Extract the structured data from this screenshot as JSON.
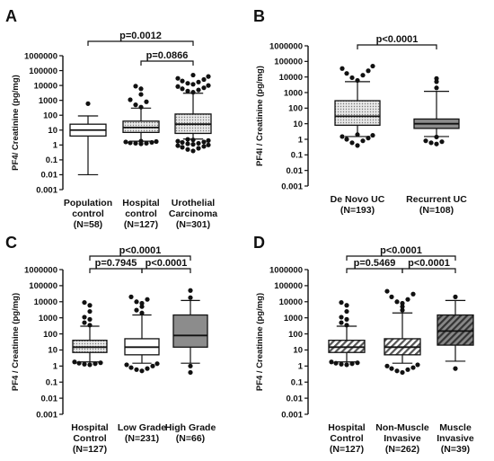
{
  "chart_data": [
    {
      "type": "box",
      "panel_label": "A",
      "ylabel": "PF4/ Creatinine (pg/mg)",
      "y_scale": "log",
      "ylim": [
        0.001,
        1000000
      ],
      "y_ticks": [
        "0.001",
        "0.01",
        "0.1",
        "1",
        "10",
        "100",
        "1000",
        "10000",
        "100000",
        "1000000"
      ],
      "categories": [
        {
          "lines": [
            "Population",
            "control",
            "(N=58)"
          ]
        },
        {
          "lines": [
            "Hospital",
            "control",
            "(N=127)"
          ]
        },
        {
          "lines": [
            "Urothelial",
            "Carcinoma",
            "(N=301)"
          ]
        }
      ],
      "boxes": [
        {
          "min": 0.01,
          "q1": 4,
          "median": 10,
          "q3": 25,
          "max": 90,
          "fill": "white",
          "outliers": [
            600
          ]
        },
        {
          "min": 1.8,
          "q1": 7,
          "median": 15,
          "q3": 40,
          "max": 300,
          "fill": "dots",
          "outliers": [
            1.2,
            1.3,
            1.3,
            1.4,
            1.5,
            1.6,
            1.7,
            1.8,
            350,
            500,
            800,
            1100,
            2500,
            6000,
            9000
          ]
        },
        {
          "min": 2.5,
          "q1": 6,
          "median": 25,
          "q3": 120,
          "max": 3000,
          "fill": "dots",
          "outliers": [
            0.4,
            0.5,
            0.6,
            0.7,
            0.8,
            0.9,
            1,
            1.1,
            1.2,
            1.3,
            1.5,
            1.6,
            1.8,
            2,
            2.2,
            2.4,
            3500,
            4200,
            5000,
            6000,
            7000,
            8500,
            10000,
            12000,
            14000,
            17000,
            20000,
            25000,
            30000,
            40000,
            50000
          ]
        }
      ],
      "comparisons": [
        {
          "from": 0,
          "to": 2,
          "label": "p=0.0012"
        },
        {
          "from": 1,
          "to": 2,
          "label": "p=0.0866"
        }
      ]
    },
    {
      "type": "box",
      "panel_label": "B",
      "ylabel": "PF4l / Creatinine (pg/mg)",
      "y_scale": "log",
      "ylim": [
        0.001,
        1000000
      ],
      "y_ticks": [
        "0.001",
        "0.01",
        "0.1",
        "1",
        "10",
        "100",
        "1000",
        "10000",
        "100000",
        "1000000"
      ],
      "categories": [
        {
          "lines": [
            "De Novo UC",
            "(N=193)"
          ]
        },
        {
          "lines": [
            "Recurrent UC",
            "(N=108)"
          ]
        }
      ],
      "boxes": [
        {
          "min": 1.5,
          "q1": 8,
          "median": 30,
          "q3": 300,
          "max": 5000,
          "fill": "dots",
          "outliers": [
            0.4,
            0.6,
            0.8,
            1,
            1.2,
            1.5,
            1.8,
            2,
            6000,
            9000,
            13000,
            17000,
            25000,
            35000,
            50000
          ]
        },
        {
          "min": 1.5,
          "q1": 5,
          "median": 10,
          "q3": 20,
          "max": 1200,
          "fill": "gray",
          "outliers": [
            0.5,
            0.6,
            0.7,
            0.8,
            1.4,
            2000,
            5000,
            8000
          ]
        }
      ],
      "comparisons": [
        {
          "from": 0,
          "to": 1,
          "label": "p<0.0001"
        }
      ]
    },
    {
      "type": "box",
      "panel_label": "C",
      "ylabel": "PF4 / Creatinine (pg/mg)",
      "y_scale": "log",
      "ylim": [
        0.001,
        1000000
      ],
      "y_ticks": [
        "0.001",
        "0.01",
        "0.1",
        "1",
        "10",
        "100",
        "1000",
        "10000",
        "100000",
        "1000000"
      ],
      "categories": [
        {
          "lines": [
            "Hospital",
            "Control",
            "(N=127)"
          ]
        },
        {
          "lines": [
            "Low Grade",
            "(N=231)"
          ]
        },
        {
          "lines": [
            "High Grade",
            "(N=66)"
          ]
        }
      ],
      "boxes": [
        {
          "min": 1.8,
          "q1": 7,
          "median": 15,
          "q3": 40,
          "max": 300,
          "fill": "dots",
          "outliers": [
            1.2,
            1.3,
            1.4,
            1.5,
            1.6,
            1.8,
            350,
            500,
            800,
            1100,
            2500,
            6000,
            9000
          ]
        },
        {
          "min": 1.5,
          "q1": 5,
          "median": 15,
          "q3": 50,
          "max": 1500,
          "fill": "white",
          "outliers": [
            0.5,
            0.6,
            0.7,
            0.8,
            1,
            1.2,
            1.4,
            2000,
            3000,
            5000,
            8000,
            10000,
            14000,
            20000
          ]
        },
        {
          "min": 1.5,
          "q1": 15,
          "median": 80,
          "q3": 1500,
          "max": 12000,
          "fill": "gray",
          "outliers": [
            0.4,
            1,
            18000,
            50000
          ]
        }
      ],
      "comparisons": [
        {
          "from": 0,
          "to": 2,
          "label": "p<0.0001"
        },
        {
          "from": 0,
          "to": 1,
          "label": "p=0.7945"
        },
        {
          "from": 1,
          "to": 2,
          "label": "p<0.0001"
        }
      ]
    },
    {
      "type": "box",
      "panel_label": "D",
      "ylabel": "PF4 / Creatinine (pg/mg)",
      "y_scale": "log",
      "ylim": [
        0.001,
        1000000
      ],
      "y_ticks": [
        "0.001",
        "0.01",
        "0.1",
        "1",
        "10",
        "100",
        "1000",
        "10000",
        "100000",
        "1000000"
      ],
      "categories": [
        {
          "lines": [
            "Hospital",
            "Control",
            "(N=127)"
          ]
        },
        {
          "lines": [
            "Non-Muscle",
            "Invasive",
            "(N=262)"
          ]
        },
        {
          "lines": [
            "Muscle",
            "Invasive",
            "(N=39)"
          ]
        }
      ],
      "boxes": [
        {
          "min": 1.8,
          "q1": 7,
          "median": 15,
          "q3": 40,
          "max": 300,
          "fill": "stripes",
          "outliers": [
            1.2,
            1.3,
            1.4,
            1.5,
            1.6,
            1.8,
            350,
            500,
            800,
            1100,
            2500,
            6000,
            9000
          ]
        },
        {
          "min": 1.5,
          "q1": 5,
          "median": 15,
          "q3": 50,
          "max": 2000,
          "fill": "stripes",
          "outliers": [
            0.4,
            0.5,
            0.6,
            0.7,
            0.8,
            1,
            1.2,
            3000,
            5000,
            8000,
            10000,
            14000,
            20000,
            30000,
            45000
          ]
        },
        {
          "min": 2,
          "q1": 20,
          "median": 150,
          "q3": 1500,
          "max": 12000,
          "fill": "stripes-dark",
          "outliers": [
            0.7,
            20000
          ]
        }
      ],
      "comparisons": [
        {
          "from": 0,
          "to": 2,
          "label": "p<0.0001"
        },
        {
          "from": 0,
          "to": 1,
          "label": "p=0.5469"
        },
        {
          "from": 1,
          "to": 2,
          "label": "p<0.0001"
        }
      ]
    }
  ]
}
